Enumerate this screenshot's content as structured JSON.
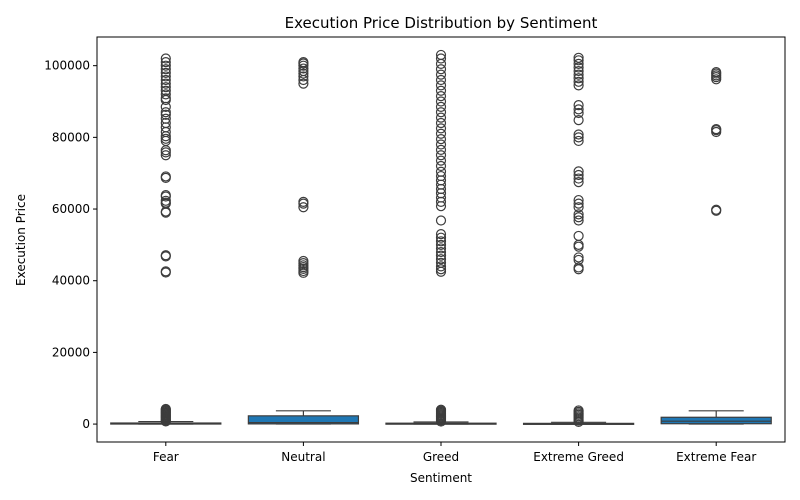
{
  "chart_data": {
    "type": "box",
    "title": "Execution Price Distribution by Sentiment",
    "xlabel": "Sentiment",
    "ylabel": "Execution Price",
    "ylim": [
      -5000,
      108000
    ],
    "yticks": [
      0,
      20000,
      40000,
      60000,
      80000,
      100000
    ],
    "grid": false,
    "box_color": "#1f77b4",
    "categories": [
      "Fear",
      "Neutral",
      "Greed",
      "Extreme Greed",
      "Extreme Fear"
    ],
    "boxes": [
      {
        "category": "Fear",
        "q1": 10,
        "median": 60,
        "q3": 300,
        "whisker_low": 0,
        "whisker_high": 700,
        "outliers": [
          750,
          1000,
          1250,
          1500,
          1750,
          2000,
          2250,
          2500,
          2750,
          3000,
          3250,
          3500,
          3750,
          4000,
          4200,
          42300,
          42600,
          46800,
          47100,
          59000,
          59300,
          61500,
          61800,
          62300,
          63500,
          63900,
          68700,
          69100,
          75000,
          75800,
          76400,
          79000,
          79600,
          80300,
          81500,
          82800,
          84000,
          85200,
          86300,
          87000,
          88500,
          90400,
          90900,
          92000,
          93000,
          94000,
          95000,
          96000,
          97000,
          98000,
          99000,
          100000,
          101000,
          102000
        ]
      },
      {
        "category": "Neutral",
        "q1": 50,
        "median": 400,
        "q3": 2300,
        "whisker_low": 0,
        "whisker_high": 3700,
        "outliers": [
          42200,
          42700,
          43300,
          43800,
          44300,
          44900,
          45500,
          60500,
          61500,
          62000,
          95000,
          96000,
          97000,
          97800,
          98500,
          99200,
          100000,
          100600,
          101000
        ]
      },
      {
        "category": "Greed",
        "q1": 10,
        "median": 60,
        "q3": 250,
        "whisker_low": 0,
        "whisker_high": 600,
        "outliers": [
          700,
          1000,
          1300,
          1600,
          1900,
          2200,
          2500,
          2800,
          3100,
          3400,
          3700,
          4000,
          42500,
          43200,
          44000,
          45000,
          46000,
          47000,
          48000,
          49000,
          50000,
          51000,
          52000,
          53000,
          56800,
          60800,
          62000,
          63200,
          64400,
          65600,
          66800,
          68000,
          69200,
          70400,
          72000,
          73500,
          75000,
          76500,
          78000,
          79500,
          81000,
          82500,
          84000,
          85500,
          87000,
          88500,
          90000,
          91500,
          93000,
          94500,
          96000,
          97500,
          99000,
          100500,
          102000,
          103000
        ]
      },
      {
        "category": "Extreme Greed",
        "q1": 10,
        "median": 50,
        "q3": 200,
        "whisker_low": 0,
        "whisker_high": 500,
        "outliers": [
          600,
          1000,
          1400,
          1800,
          2200,
          2600,
          3000,
          3400,
          3800,
          43200,
          43700,
          45800,
          46500,
          49500,
          50000,
          52500,
          56800,
          57700,
          58500,
          60500,
          61500,
          62500,
          67500,
          68500,
          69500,
          70500,
          79000,
          80000,
          80800,
          84800,
          86800,
          87800,
          89000,
          94500,
          95500,
          96500,
          97500,
          98500,
          99500,
          100500,
          101500,
          102200
        ]
      },
      {
        "category": "Extreme Fear",
        "q1": 100,
        "median": 800,
        "q3": 1900,
        "whisker_low": 0,
        "whisker_high": 3700,
        "outliers": [
          59500,
          59800,
          81500,
          82000,
          82300,
          96200,
          96800,
          97300,
          97800,
          98200
        ]
      }
    ]
  }
}
